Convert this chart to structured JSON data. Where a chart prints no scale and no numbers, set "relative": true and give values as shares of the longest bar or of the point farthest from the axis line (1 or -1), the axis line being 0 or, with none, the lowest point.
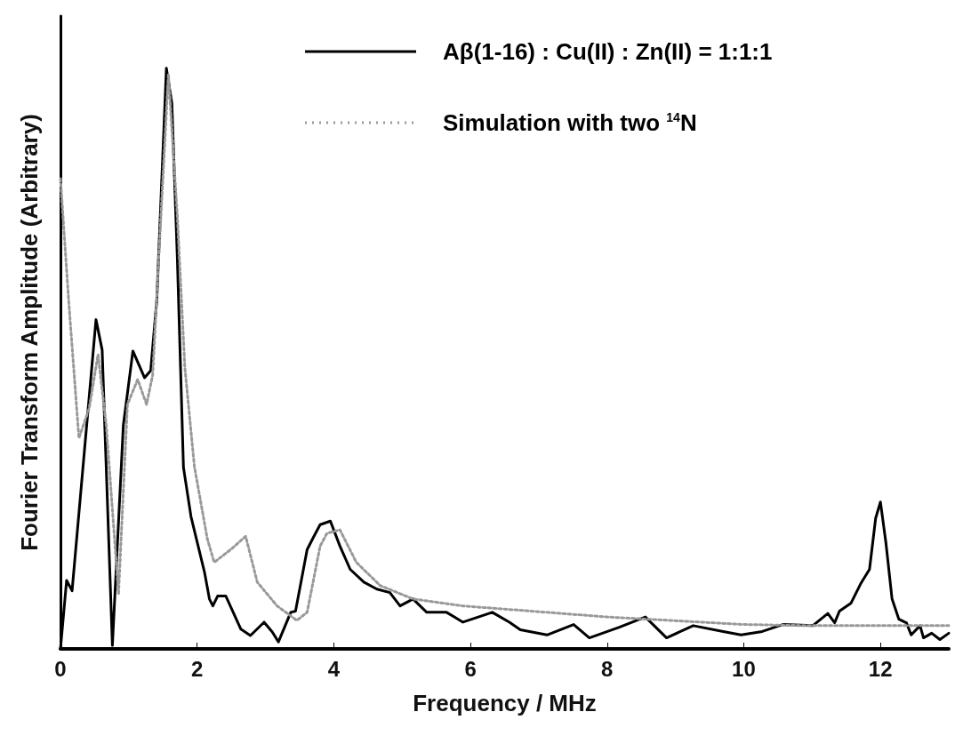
{
  "chart_data": {
    "type": "line",
    "xlabel": "Frequency / MHz",
    "ylabel": "Fourier Transform Amplitude (Arbitrary)",
    "relative": true,
    "xlim": [
      0,
      13
    ],
    "xticks": [
      0,
      2,
      4,
      6,
      8,
      10,
      12
    ],
    "legend": "top right",
    "grid": false,
    "marker": "none",
    "series": [
      {
        "name": "Aβ(1-16) : Cu(II) : Zn(II) = 1:1:1",
        "color": "#000000",
        "line_style": "solid",
        "x": [
          0,
          0.09,
          0.17,
          0.52,
          0.61,
          0.76,
          0.92,
          1.06,
          1.23,
          1.32,
          1.41,
          1.55,
          1.63,
          1.71,
          1.8,
          1.91,
          2.11,
          2.18,
          2.23,
          2.3,
          2.42,
          2.64,
          2.78,
          2.98,
          3.1,
          3.19,
          3.37,
          3.44,
          3.61,
          3.71,
          3.8,
          3.95,
          4.09,
          4.24,
          4.44,
          4.63,
          4.82,
          4.97,
          5.16,
          5.36,
          5.65,
          5.89,
          6.32,
          6.57,
          6.73,
          7.12,
          7.51,
          7.74,
          8.17,
          8.56,
          8.87,
          9.26,
          9.7,
          9.96,
          10.27,
          10.57,
          11.01,
          11.23,
          11.33,
          11.4,
          11.57,
          11.71,
          11.84,
          11.93,
          12.0,
          12.08,
          12.17,
          12.27,
          12.38,
          12.45,
          12.58,
          12.63,
          12.75,
          12.87,
          13.0
        ],
        "values": [
          0,
          0.118,
          0.1,
          0.567,
          0.515,
          0.006,
          0.385,
          0.513,
          0.467,
          0.479,
          0.601,
          1,
          0.94,
          0.674,
          0.3125,
          0.228,
          0.131,
          0.086,
          0.074,
          0.091,
          0.091,
          0.034,
          0.023,
          0.046,
          0.029,
          0.012,
          0.063,
          0.065,
          0.171,
          0.194,
          0.214,
          0.22,
          0.177,
          0.137,
          0.115,
          0.103,
          0.097,
          0.074,
          0.086,
          0.063,
          0.063,
          0.046,
          0.063,
          0.046,
          0.033,
          0.024,
          0.042,
          0.019,
          0.037,
          0.055,
          0.019,
          0.04,
          0.03,
          0.024,
          0.03,
          0.042,
          0.04,
          0.061,
          0.045,
          0.065,
          0.079,
          0.112,
          0.137,
          0.225,
          0.253,
          0.183,
          0.086,
          0.051,
          0.045,
          0.024,
          0.04,
          0.019,
          0.027,
          0.016,
          0.027
        ]
      },
      {
        "name": "Simulation with two $^{14}$N",
        "color": "#999999",
        "line_style": "dotted",
        "x": [
          0,
          0.12,
          0.27,
          0.42,
          0.55,
          0.67,
          0.85,
          0.98,
          1.13,
          1.26,
          1.35,
          1.47,
          1.58,
          1.71,
          1.82,
          1.96,
          2.15,
          2.25,
          2.49,
          2.71,
          2.88,
          3.17,
          3.46,
          3.61,
          3.8,
          3.9,
          4.09,
          4.33,
          4.68,
          5.16,
          5.89,
          6.56,
          8.0,
          10.0,
          11.0,
          12.0,
          13.0
        ],
        "values": [
          0.81,
          0.6,
          0.363,
          0.414,
          0.507,
          0.385,
          0.095,
          0.421,
          0.464,
          0.421,
          0.472,
          0.746,
          0.99,
          0.746,
          0.485,
          0.314,
          0.189,
          0.149,
          0.171,
          0.194,
          0.115,
          0.074,
          0.049,
          0.063,
          0.177,
          0.199,
          0.205,
          0.149,
          0.109,
          0.086,
          0.074,
          0.068,
          0.055,
          0.042,
          0.04,
          0.04,
          0.04
        ]
      }
    ]
  }
}
